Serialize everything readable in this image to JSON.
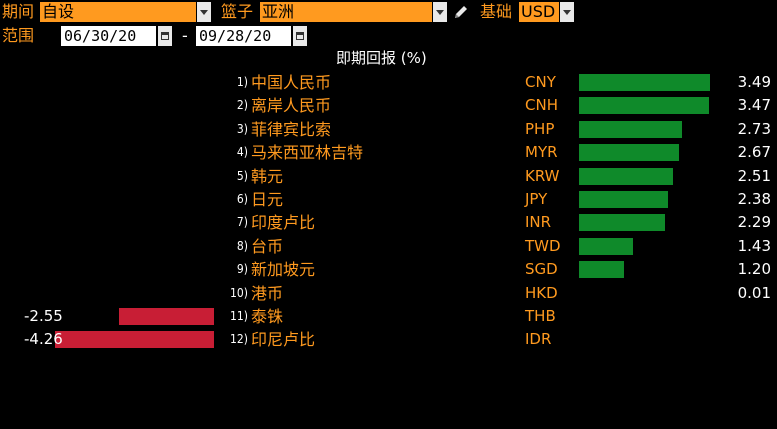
{
  "toolbar": {
    "period_label": "期间",
    "period_value": "自设",
    "basket_label": "篮子",
    "basket_value": "亚洲",
    "base_label": "基础",
    "base_value": "USD",
    "range_label": "范围",
    "date_from": "06/30/20",
    "date_sep": "-",
    "date_to": "09/28/20",
    "edit_icon": "pencil-icon",
    "calendar_icon": "calendar-icon"
  },
  "chart_data": {
    "type": "bar",
    "title": "即期回报 (%)",
    "rows": [
      {
        "rank": "1)",
        "name": "中国人民币",
        "code": "CNY",
        "value": 3.49,
        "label": "3.49"
      },
      {
        "rank": "2)",
        "name": "离岸人民币",
        "code": "CNH",
        "value": 3.47,
        "label": "3.47"
      },
      {
        "rank": "3)",
        "name": "菲律宾比索",
        "code": "PHP",
        "value": 2.73,
        "label": "2.73"
      },
      {
        "rank": "4)",
        "name": "马来西亚林吉特",
        "code": "MYR",
        "value": 2.67,
        "label": "2.67"
      },
      {
        "rank": "5)",
        "name": "韩元",
        "code": "KRW",
        "value": 2.51,
        "label": "2.51"
      },
      {
        "rank": "6)",
        "name": "日元",
        "code": "JPY",
        "value": 2.38,
        "label": "2.38"
      },
      {
        "rank": "7)",
        "name": "印度卢比",
        "code": "INR",
        "value": 2.29,
        "label": "2.29"
      },
      {
        "rank": "8)",
        "name": "台币",
        "code": "TWD",
        "value": 1.43,
        "label": "1.43"
      },
      {
        "rank": "9)",
        "name": "新加坡元",
        "code": "SGD",
        "value": 1.2,
        "label": "1.20"
      },
      {
        "rank": "10)",
        "name": "港币",
        "code": "HKD",
        "value": 0.01,
        "label": "0.01"
      },
      {
        "rank": "11)",
        "name": "泰铢",
        "code": "THB",
        "value": -2.55,
        "label": "-2.55"
      },
      {
        "rank": "12)",
        "name": "印尼卢比",
        "code": "IDR",
        "value": -4.26,
        "label": "-4.26"
      }
    ],
    "colors": {
      "positive": "#0f8a2a",
      "negative": "#c81e35"
    }
  }
}
